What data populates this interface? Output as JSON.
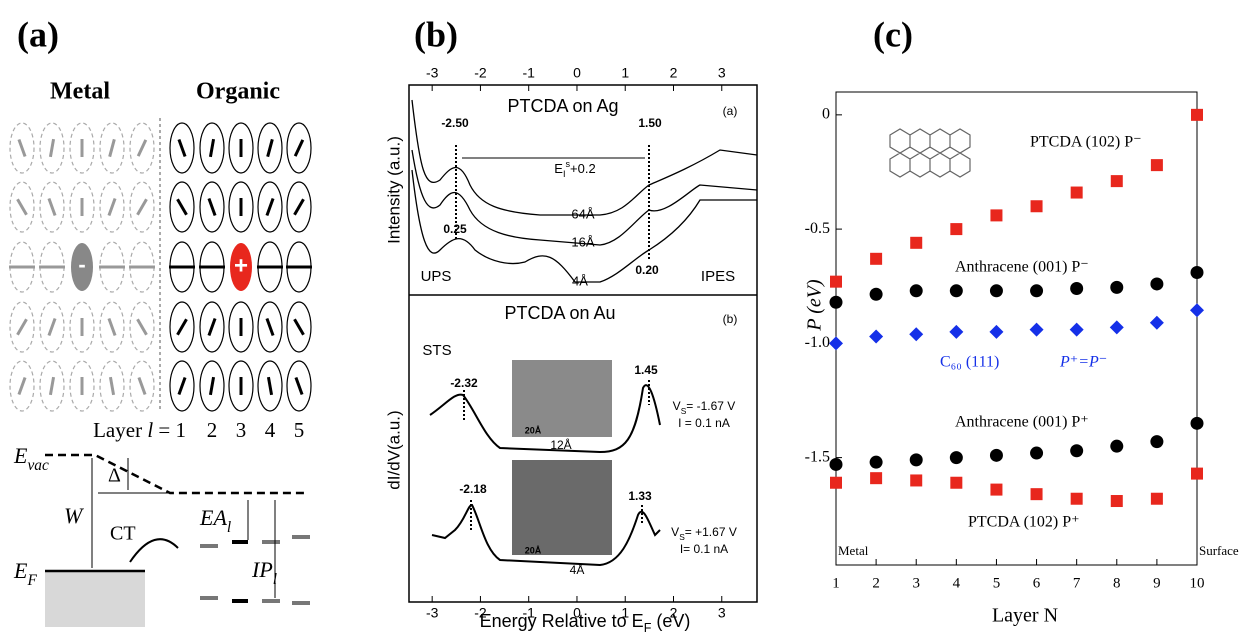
{
  "panel_a": {
    "label": "(a)",
    "metal": "Metal",
    "organic": "Organic",
    "layer_label": [
      "Layer ",
      "l",
      " = 1"
    ],
    "layer_numbers": [
      "2",
      "3",
      "4",
      "5"
    ],
    "minus": "-",
    "plus": "+",
    "e_vac": [
      "E",
      "vac"
    ],
    "delta": "Δ",
    "w": "W",
    "ct": "CT",
    "ea": [
      "EA",
      "l"
    ],
    "ip": [
      "IP",
      "l"
    ],
    "e_f": [
      "E",
      "F"
    ]
  },
  "panel_b": {
    "label": "(b)",
    "xlim": [
      -3.48,
      3.73
    ],
    "xticks": [
      -3,
      -2,
      -1,
      0,
      1,
      2,
      3
    ],
    "xlabel": [
      "Energy Relative to E",
      "F",
      " (eV)"
    ],
    "top": {
      "title": "PTCDA on Ag",
      "tag": "(a)",
      "ylabel": "Intensity (a.u.)",
      "annotations": [
        "-2.50",
        "1.50",
        [
          "E",
          "I",
          "s",
          "+0.2"
        ],
        "0.25",
        "64Å",
        "16Å",
        "4Å",
        "0.20",
        "UPS",
        "IPES"
      ]
    },
    "bottom": {
      "title": "PTCDA on Au",
      "tag": "(b)",
      "ylabel": "dI/dV(a.u.)",
      "annotations": [
        "STS",
        "-2.32",
        "1.45",
        [
          "V",
          "S",
          "= -1.67 V"
        ],
        "I =  0.1 nA",
        "20Å",
        "12Å",
        "-2.18",
        "1.33",
        [
          "V",
          "S",
          "= +1.67 V"
        ],
        "I=  0.1 nA",
        "20Å",
        "4Å"
      ]
    }
  },
  "chart_data": {
    "type": "scatter",
    "label": "(c)",
    "ylabel": "P (eV)",
    "xlabel": "Layer N",
    "x": [
      1,
      2,
      3,
      4,
      5,
      6,
      7,
      8,
      9,
      10
    ],
    "xlim": [
      1,
      10
    ],
    "xticks": [
      1,
      2,
      3,
      4,
      5,
      6,
      7,
      8,
      9,
      10
    ],
    "ylim": [
      -1.97,
      0.1
    ],
    "yticks": [
      0,
      -0.5,
      {
        "value": -1,
        "label": "-1.0"
      },
      -1.5
    ],
    "series": [
      {
        "name": "PTCDA (102)  P⁻",
        "color": "#e8271d",
        "marker": "square",
        "values": [
          -0.73,
          -0.63,
          -0.56,
          -0.5,
          -0.44,
          -0.4,
          -0.34,
          -0.29,
          -0.22,
          0
        ]
      },
      {
        "name": "Anthracene (001)  P⁻",
        "color": "#000000",
        "marker": "circle",
        "values": [
          -0.82,
          -0.785,
          -0.77,
          -0.77,
          -0.77,
          -0.77,
          -0.76,
          -0.755,
          -0.74,
          -0.69
        ]
      },
      {
        "name": "C₆₀ (111)",
        "color": "#1530e8",
        "marker": "diamond",
        "values": [
          -1.0,
          -0.97,
          -0.96,
          -0.95,
          -0.95,
          -0.94,
          -0.94,
          -0.93,
          -0.91,
          -0.855
        ]
      },
      {
        "name": "Anthracene (001)  P⁺",
        "color": "#000000",
        "marker": "circle",
        "values": [
          -1.53,
          -1.52,
          -1.51,
          -1.5,
          -1.49,
          -1.48,
          -1.47,
          -1.45,
          -1.43,
          -1.35
        ]
      },
      {
        "name": "PTCDA (102)  P⁺",
        "color": "#e8271d",
        "marker": "square",
        "values": [
          -1.61,
          -1.59,
          -1.6,
          -1.61,
          -1.64,
          -1.66,
          -1.68,
          -1.69,
          -1.68,
          -1.57
        ]
      }
    ],
    "annotations": [
      "P⁺=P⁻",
      "Metal",
      "Surface"
    ]
  }
}
